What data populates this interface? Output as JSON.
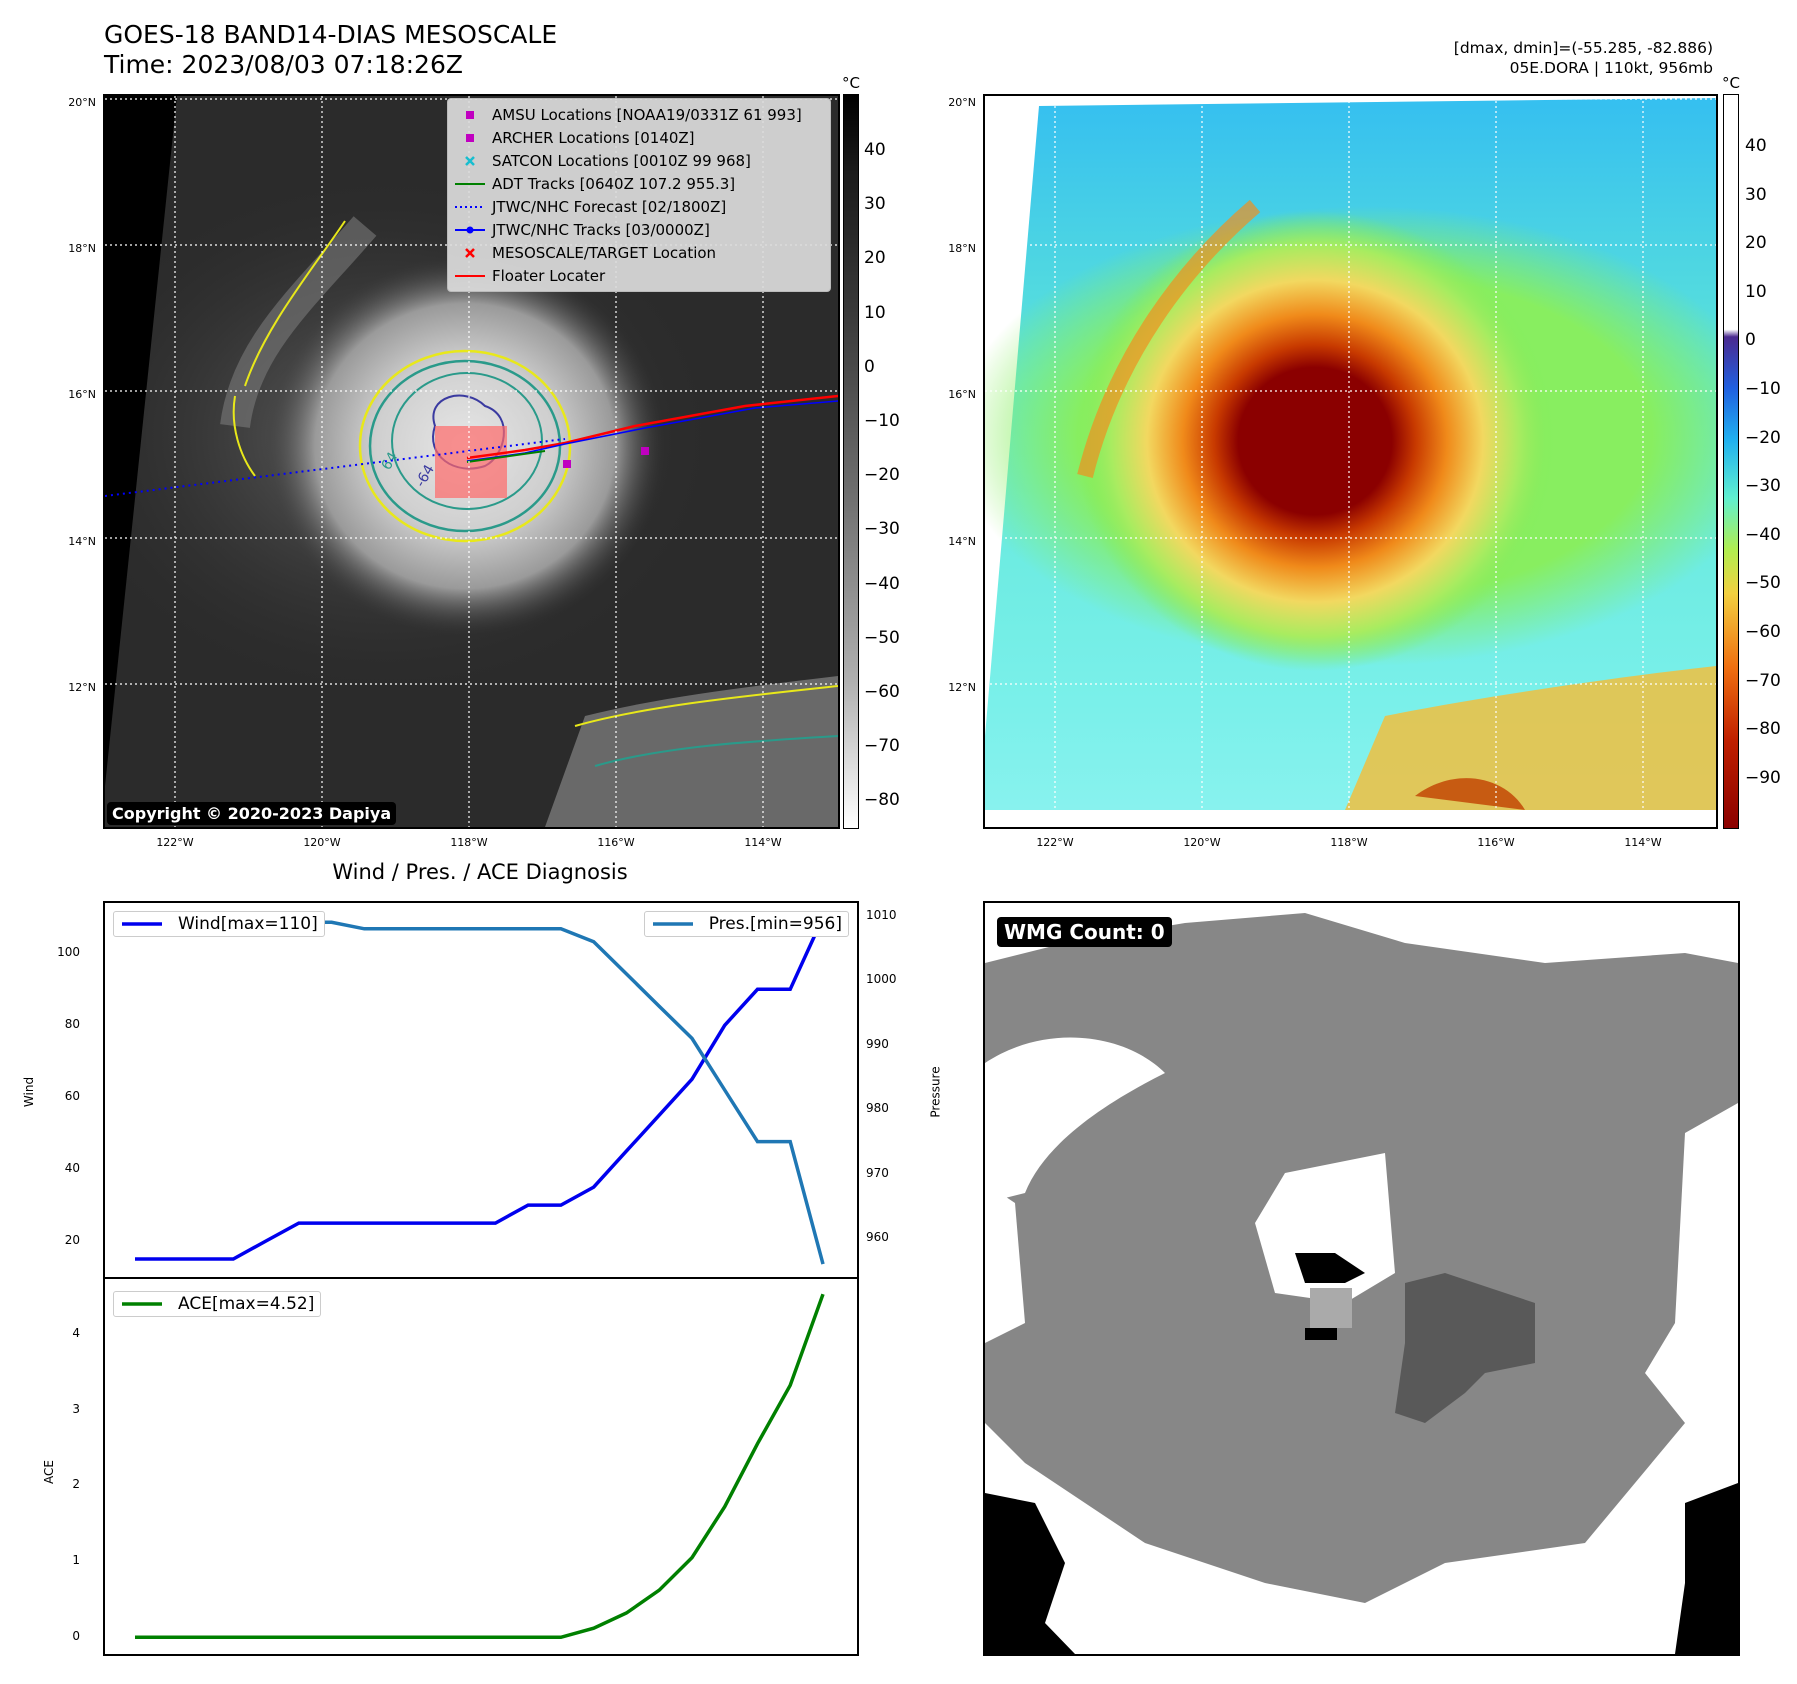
{
  "header": {
    "title_line1": "GOES-18 BAND14-DIAS MESOSCALE",
    "title_line2": "Time: 2023/08/03 07:18:26Z",
    "dmax_dmin": "[dmax, dmin]=(-55.285, -82.886)",
    "storm_info": "05E.DORA | 110kt, 956mb"
  },
  "maps": {
    "lat_labels": [
      "20°N",
      "18°N",
      "16°N",
      "14°N",
      "12°N"
    ],
    "lon_labels": [
      "122°W",
      "120°W",
      "118°W",
      "116°W",
      "114°W"
    ],
    "copyright": "Copyright © 2020-2023 Dapiya",
    "colorbar_unit": "°C",
    "gray_colorbar_ticks": [
      "40",
      "30",
      "20",
      "10",
      "0",
      "−10",
      "−20",
      "−30",
      "−40",
      "−50",
      "−60",
      "−70",
      "−80"
    ],
    "color_colorbar_ticks": [
      "40",
      "30",
      "20",
      "10",
      "0",
      "−10",
      "−20",
      "−30",
      "−40",
      "−50",
      "−60",
      "−70",
      "−80",
      "−90"
    ],
    "contour_labels": [
      "64",
      "-64"
    ],
    "legend": [
      {
        "label": "AMSU Locations [NOAA19/0331Z 61 993]",
        "color": "#c000c0",
        "marker": "square"
      },
      {
        "label": "ARCHER Locations [0140Z]",
        "color": "#c000c0",
        "marker": "square"
      },
      {
        "label": "SATCON Locations [0010Z 99 968]",
        "color": "#17becf",
        "marker": "x"
      },
      {
        "label": "ADT Tracks [0640Z 107.2 955.3]",
        "color": "#008000",
        "marker": "line"
      },
      {
        "label": "JTWC/NHC Forecast [02/1800Z]",
        "color": "#0000ff",
        "marker": "dotted"
      },
      {
        "label": "JTWC/NHC Tracks [03/0000Z]",
        "color": "#0000ff",
        "marker": "line-dot"
      },
      {
        "label": "MESOSCALE/TARGET Location",
        "color": "#ff0000",
        "marker": "x"
      },
      {
        "label": "Floater Locater",
        "color": "#ff0000",
        "marker": "line"
      }
    ]
  },
  "diagnosis": {
    "title": "Wind / Pres. / ACE Diagnosis",
    "wind_ylabel": "Wind",
    "pres_ylabel": "Pressure",
    "ace_ylabel": "ACE",
    "wind_legend": "Wind[max=110]",
    "pres_legend": "Pres.[min=956]",
    "ace_legend": "ACE[max=4.52]",
    "wind_ticks": [
      "100",
      "80",
      "60",
      "40",
      "20"
    ],
    "pres_ticks": [
      "1010",
      "1000",
      "990",
      "980",
      "970",
      "960"
    ],
    "ace_ticks": [
      "4",
      "3",
      "2",
      "1",
      "0"
    ]
  },
  "wmg": {
    "label": "WMG Count: 0"
  },
  "colors": {
    "wind": "#0000ee",
    "pressure": "#1f77b4",
    "ace": "#008000"
  },
  "chart_data": [
    {
      "type": "line",
      "title": "Wind / Pres. / ACE Diagnosis",
      "ylabel": "Wind",
      "series": [
        {
          "name": "Wind[max=110]",
          "axis": "left",
          "values": [
            15,
            15,
            15,
            15,
            20,
            25,
            25,
            25,
            25,
            25,
            25,
            25,
            30,
            30,
            35,
            45,
            55,
            65,
            80,
            90,
            90,
            110
          ]
        },
        {
          "name": "Pres.[min=956]",
          "axis": "right",
          "values": [
            1010,
            1010,
            1010,
            1010,
            1009,
            1009,
            1009,
            1008,
            1008,
            1008,
            1008,
            1008,
            1008,
            1008,
            1006,
            1001,
            996,
            991,
            983,
            975,
            975,
            956
          ]
        }
      ],
      "ylim": [
        10,
        114
      ],
      "y2label": "Pressure",
      "y2lim": [
        954,
        1012
      ],
      "grid": false
    },
    {
      "type": "line",
      "ylabel": "ACE",
      "series": [
        {
          "name": "ACE[max=4.52]",
          "values": [
            0,
            0,
            0,
            0,
            0,
            0,
            0,
            0,
            0,
            0,
            0,
            0,
            0,
            0,
            0.12,
            0.32,
            0.62,
            1.05,
            1.72,
            2.55,
            3.32,
            4.52
          ]
        }
      ],
      "ylim": [
        -0.22,
        4.72
      ],
      "grid": false
    }
  ]
}
